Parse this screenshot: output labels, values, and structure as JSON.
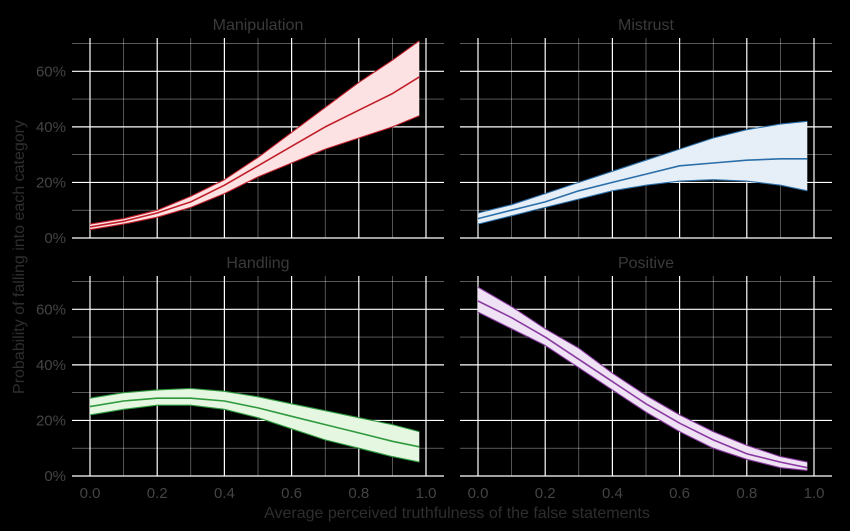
{
  "chart_data": {
    "type": "line",
    "xlabel": "Average perceived truthfulness of the false statements",
    "ylabel": "Probability of falling into each category",
    "xlim": [
      0,
      1
    ],
    "ylim": [
      0,
      0.72
    ],
    "x_ticks": [
      "0.0",
      "0.2",
      "0.4",
      "0.6",
      "0.8",
      "1.0"
    ],
    "y_ticks": [
      "0%",
      "20%",
      "40%",
      "60%"
    ],
    "grid": true,
    "panels": [
      {
        "title": "Manipulation",
        "color": "#c0202a",
        "fill": "#fde2e4",
        "x": [
          0,
          0.1,
          0.2,
          0.3,
          0.4,
          0.5,
          0.6,
          0.7,
          0.8,
          0.9,
          0.98
        ],
        "mean": [
          0.04,
          0.06,
          0.09,
          0.13,
          0.19,
          0.26,
          0.33,
          0.4,
          0.46,
          0.52,
          0.58
        ],
        "lower": [
          0.03,
          0.05,
          0.075,
          0.11,
          0.16,
          0.22,
          0.27,
          0.32,
          0.36,
          0.4,
          0.44
        ],
        "upper": [
          0.05,
          0.07,
          0.1,
          0.15,
          0.21,
          0.29,
          0.38,
          0.47,
          0.56,
          0.64,
          0.71
        ]
      },
      {
        "title": "Mistrust",
        "color": "#2c6fa8",
        "fill": "#e6eff8",
        "x": [
          0,
          0.1,
          0.2,
          0.3,
          0.4,
          0.5,
          0.6,
          0.7,
          0.8,
          0.9,
          0.98
        ],
        "mean": [
          0.07,
          0.1,
          0.13,
          0.17,
          0.2,
          0.23,
          0.26,
          0.27,
          0.28,
          0.285,
          0.285
        ],
        "lower": [
          0.05,
          0.08,
          0.11,
          0.14,
          0.17,
          0.19,
          0.205,
          0.21,
          0.205,
          0.19,
          0.17
        ],
        "upper": [
          0.09,
          0.12,
          0.16,
          0.2,
          0.24,
          0.28,
          0.32,
          0.36,
          0.39,
          0.41,
          0.42
        ]
      },
      {
        "title": "Handling",
        "color": "#2e9a3c",
        "fill": "#e5f6e1",
        "x": [
          0,
          0.1,
          0.2,
          0.3,
          0.4,
          0.5,
          0.6,
          0.7,
          0.8,
          0.9,
          0.98
        ],
        "mean": [
          0.25,
          0.27,
          0.28,
          0.28,
          0.27,
          0.245,
          0.215,
          0.185,
          0.155,
          0.125,
          0.105
        ],
        "lower": [
          0.22,
          0.24,
          0.255,
          0.255,
          0.24,
          0.21,
          0.17,
          0.13,
          0.1,
          0.07,
          0.05
        ],
        "upper": [
          0.28,
          0.3,
          0.31,
          0.315,
          0.305,
          0.285,
          0.26,
          0.235,
          0.21,
          0.185,
          0.16
        ]
      },
      {
        "title": "Positive",
        "color": "#8a3aa0",
        "fill": "#efe2f5",
        "x": [
          0,
          0.1,
          0.2,
          0.3,
          0.4,
          0.5,
          0.6,
          0.7,
          0.8,
          0.9,
          0.98
        ],
        "mean": [
          0.63,
          0.57,
          0.5,
          0.42,
          0.34,
          0.26,
          0.19,
          0.13,
          0.08,
          0.05,
          0.03
        ],
        "lower": [
          0.59,
          0.53,
          0.47,
          0.39,
          0.31,
          0.23,
          0.16,
          0.1,
          0.06,
          0.03,
          0.02
        ],
        "upper": [
          0.68,
          0.61,
          0.53,
          0.46,
          0.37,
          0.29,
          0.22,
          0.16,
          0.11,
          0.07,
          0.05
        ]
      }
    ]
  }
}
